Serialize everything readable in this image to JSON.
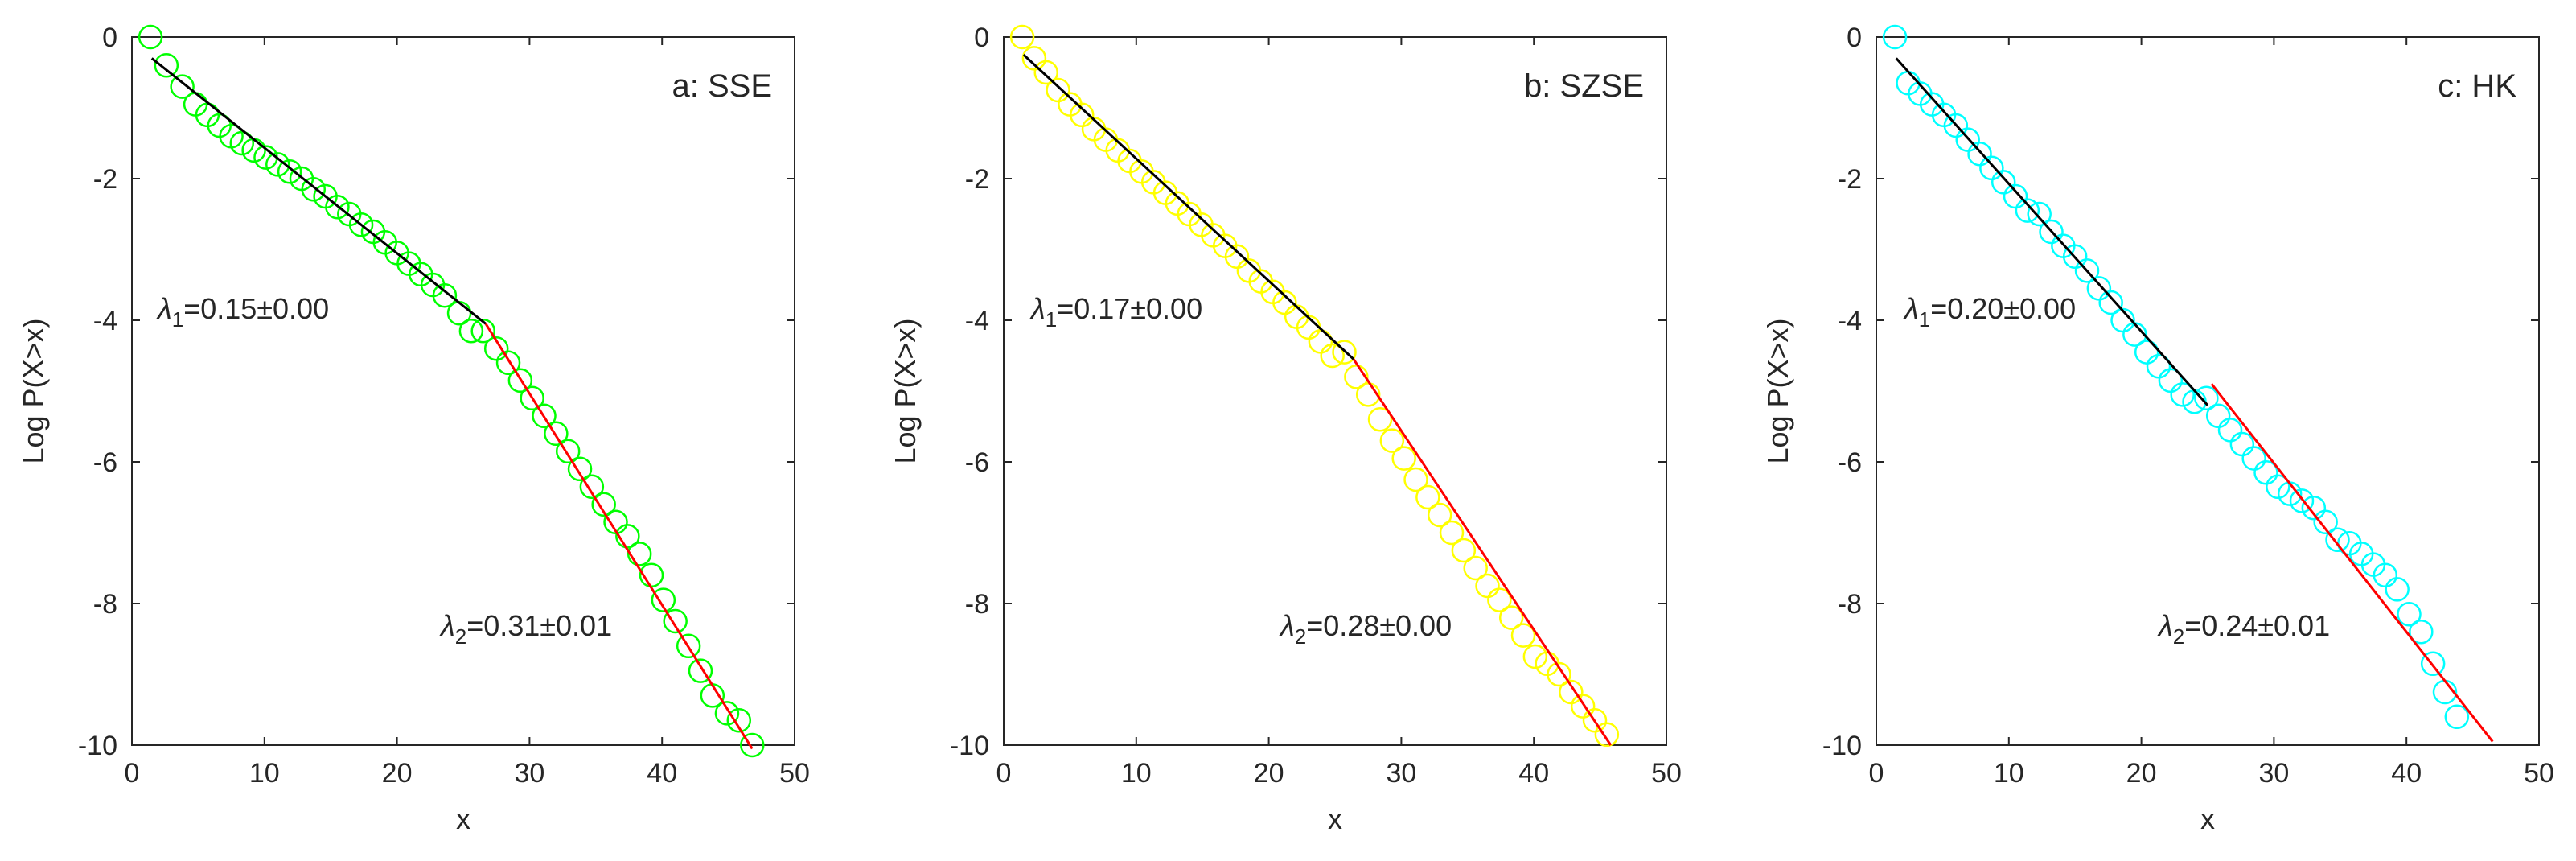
{
  "chart_data": [
    {
      "type": "scatter",
      "panel_label": "a: SSE",
      "xlabel": "x",
      "ylabel": "Log P(X>x)",
      "xlim": [
        0,
        50
      ],
      "ylim": [
        -10,
        0
      ],
      "xticks": [
        "0",
        "10",
        "20",
        "30",
        "40",
        "50"
      ],
      "yticks": [
        "0",
        "-2",
        "-4",
        "-6",
        "-8",
        "-10"
      ],
      "marker_color": "#00ff00",
      "series": [
        {
          "x": [
            1.4,
            2.6,
            3.8,
            4.8,
            5.7,
            6.6,
            7.5,
            8.3,
            9.2,
            10.1,
            11.0,
            11.9,
            12.8,
            13.7,
            14.6,
            15.5,
            16.4,
            17.3,
            18.2,
            19.1,
            20.0,
            20.9,
            21.8,
            22.7,
            23.6,
            24.7,
            25.6,
            26.5,
            27.5,
            28.4,
            29.3,
            30.2,
            31.1,
            32.0,
            32.9,
            33.8,
            34.7,
            35.6,
            36.5,
            37.4,
            38.3,
            39.2,
            40.1,
            41.0,
            42.0,
            42.9,
            43.8,
            44.9,
            45.8,
            46.8
          ],
          "y": [
            0.0,
            -0.4,
            -0.7,
            -0.95,
            -1.1,
            -1.25,
            -1.4,
            -1.5,
            -1.6,
            -1.7,
            -1.8,
            -1.9,
            -2.0,
            -2.15,
            -2.25,
            -2.4,
            -2.5,
            -2.65,
            -2.75,
            -2.9,
            -3.05,
            -3.2,
            -3.35,
            -3.5,
            -3.65,
            -3.9,
            -4.15,
            -4.15,
            -4.4,
            -4.6,
            -4.85,
            -5.1,
            -5.35,
            -5.6,
            -5.85,
            -6.1,
            -6.35,
            -6.6,
            -6.85,
            -7.05,
            -7.3,
            -7.6,
            -7.95,
            -8.25,
            -8.6,
            -8.95,
            -9.3,
            -9.55,
            -9.65,
            -10.0
          ]
        }
      ],
      "fits": [
        {
          "x": [
            1.5,
            26.7
          ],
          "y": [
            -0.3,
            -4.05
          ],
          "color": "#000000"
        },
        {
          "x": [
            26.7,
            46.8
          ],
          "y": [
            -4.05,
            -10.05
          ],
          "color": "#ff0000"
        }
      ],
      "annotations": [
        {
          "sym": "λ",
          "sub": "1",
          "rest": "=0.15±0.00"
        },
        {
          "sym": "λ",
          "sub": "2",
          "rest": "=0.31±0.01"
        }
      ]
    },
    {
      "type": "scatter",
      "panel_label": "b: SZSE",
      "xlabel": "x",
      "ylabel": "Log P(X>x)",
      "xlim": [
        0,
        50
      ],
      "ylim": [
        -10,
        0
      ],
      "xticks": [
        "0",
        "10",
        "20",
        "30",
        "40",
        "50"
      ],
      "yticks": [
        "0",
        "-2",
        "-4",
        "-6",
        "-8",
        "-10"
      ],
      "marker_color": "#ffff00",
      "series": [
        {
          "x": [
            1.4,
            2.3,
            3.2,
            4.1,
            5.0,
            5.9,
            6.8,
            7.7,
            8.6,
            9.5,
            10.4,
            11.3,
            12.2,
            13.1,
            14.0,
            14.9,
            15.8,
            16.7,
            17.6,
            18.5,
            19.4,
            20.3,
            21.2,
            22.1,
            23.0,
            23.9,
            24.8,
            25.7,
            26.6,
            27.5,
            28.4,
            29.3,
            30.2,
            31.1,
            32.0,
            32.9,
            33.8,
            34.7,
            35.6,
            36.5,
            37.4,
            38.3,
            39.2,
            40.1,
            41.0,
            41.9,
            42.8,
            43.7,
            44.6,
            45.5
          ],
          "y": [
            0.0,
            -0.3,
            -0.5,
            -0.75,
            -0.95,
            -1.1,
            -1.3,
            -1.45,
            -1.6,
            -1.75,
            -1.9,
            -2.05,
            -2.2,
            -2.35,
            -2.5,
            -2.65,
            -2.8,
            -2.95,
            -3.1,
            -3.3,
            -3.45,
            -3.6,
            -3.75,
            -3.95,
            -4.1,
            -4.3,
            -4.5,
            -4.45,
            -4.8,
            -5.05,
            -5.4,
            -5.7,
            -5.95,
            -6.25,
            -6.5,
            -6.75,
            -7.0,
            -7.25,
            -7.5,
            -7.75,
            -7.95,
            -8.2,
            -8.45,
            -8.75,
            -8.85,
            -9.0,
            -9.25,
            -9.45,
            -9.65,
            -9.85
          ]
        }
      ],
      "fits": [
        {
          "x": [
            1.5,
            26.4
          ],
          "y": [
            -0.25,
            -4.55
          ],
          "color": "#000000"
        },
        {
          "x": [
            26.4,
            45.8
          ],
          "y": [
            -4.55,
            -10.0
          ],
          "color": "#ff0000"
        }
      ],
      "annotations": [
        {
          "sym": "λ",
          "sub": "1",
          "rest": "=0.17±0.00"
        },
        {
          "sym": "λ",
          "sub": "2",
          "rest": "=0.28±0.00"
        }
      ]
    },
    {
      "type": "scatter",
      "panel_label": "c: HK",
      "xlabel": "x",
      "ylabel": "Log P(X>x)",
      "xlim": [
        0,
        50
      ],
      "ylim": [
        -10,
        0
      ],
      "xticks": [
        "0",
        "10",
        "20",
        "30",
        "40",
        "50"
      ],
      "yticks": [
        "0",
        "-2",
        "-4",
        "-6",
        "-8",
        "-10"
      ],
      "marker_color": "#00ffff",
      "series": [
        {
          "x": [
            1.4,
            2.4,
            3.3,
            4.2,
            5.1,
            6.0,
            6.9,
            7.8,
            8.7,
            9.6,
            10.5,
            11.4,
            12.3,
            13.2,
            14.1,
            15.0,
            15.9,
            16.8,
            17.7,
            18.6,
            19.5,
            20.4,
            21.3,
            22.2,
            23.1,
            24.0,
            24.9,
            25.8,
            26.7,
            27.6,
            28.5,
            29.4,
            30.3,
            31.2,
            32.1,
            33.0,
            33.9,
            34.8,
            35.7,
            36.6,
            37.5,
            38.4,
            39.3,
            40.2,
            41.1,
            42.0,
            42.9,
            43.8
          ],
          "y": [
            0.0,
            -0.65,
            -0.8,
            -0.95,
            -1.1,
            -1.25,
            -1.45,
            -1.65,
            -1.85,
            -2.05,
            -2.25,
            -2.45,
            -2.5,
            -2.75,
            -2.95,
            -3.1,
            -3.3,
            -3.55,
            -3.75,
            -4.0,
            -4.2,
            -4.45,
            -4.65,
            -4.85,
            -5.05,
            -5.15,
            -5.1,
            -5.35,
            -5.55,
            -5.75,
            -5.95,
            -6.15,
            -6.35,
            -6.45,
            -6.55,
            -6.65,
            -6.85,
            -7.1,
            -7.15,
            -7.3,
            -7.45,
            -7.6,
            -7.8,
            -8.15,
            -8.4,
            -8.85,
            -9.25,
            -9.6
          ]
        }
      ],
      "fits": [
        {
          "x": [
            1.5,
            25.0
          ],
          "y": [
            -0.3,
            -5.2
          ],
          "color": "#000000"
        },
        {
          "x": [
            25.3,
            46.5
          ],
          "y": [
            -4.9,
            -9.95
          ],
          "color": "#ff0000"
        }
      ],
      "annotations": [
        {
          "sym": "λ",
          "sub": "1",
          "rest": "=0.20±0.00"
        },
        {
          "sym": "λ",
          "sub": "2",
          "rest": "=0.24±0.01"
        }
      ]
    }
  ]
}
